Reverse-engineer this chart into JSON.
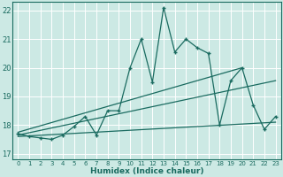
{
  "xlabel": "Humidex (Indice chaleur)",
  "xlim": [
    -0.5,
    23.5
  ],
  "ylim": [
    16.8,
    22.3
  ],
  "yticks": [
    17,
    18,
    19,
    20,
    21,
    22
  ],
  "xticks": [
    0,
    1,
    2,
    3,
    4,
    5,
    6,
    7,
    8,
    9,
    10,
    11,
    12,
    13,
    14,
    15,
    16,
    17,
    18,
    19,
    20,
    21,
    22,
    23
  ],
  "bg_color": "#cce9e4",
  "line_color": "#1a6b60",
  "grid_color": "#ffffff",
  "main_series_x": [
    0,
    1,
    2,
    3,
    4,
    5,
    6,
    7,
    8,
    9,
    10,
    11,
    12,
    13,
    14,
    15,
    16,
    17,
    18,
    19,
    20,
    21,
    22,
    23
  ],
  "main_series_y": [
    17.7,
    17.6,
    17.55,
    17.5,
    17.65,
    17.95,
    18.3,
    17.65,
    18.5,
    18.5,
    20.0,
    21.0,
    19.5,
    22.1,
    20.55,
    21.0,
    20.7,
    20.5,
    18.0,
    19.55,
    20.0,
    18.7,
    17.85,
    18.3
  ],
  "trend1_x": [
    0,
    20
  ],
  "trend1_y": [
    17.75,
    20.0
  ],
  "trend2_x": [
    0,
    23
  ],
  "trend2_y": [
    17.65,
    19.55
  ],
  "trend3_x": [
    0,
    23
  ],
  "trend3_y": [
    17.6,
    18.1
  ]
}
